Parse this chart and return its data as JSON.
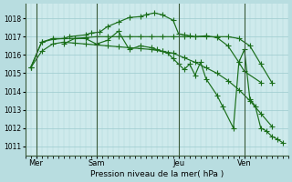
{
  "background_color": "#b8dde0",
  "plot_bg_color": "#ceeaec",
  "grid_color": "#9dcbce",
  "line_color": "#1a6e1a",
  "xlabel": "Pression niveau de la mer( hPa )",
  "ylim": [
    1010.5,
    1018.8
  ],
  "yticks": [
    1011,
    1012,
    1013,
    1014,
    1015,
    1016,
    1017,
    1018
  ],
  "xlim": [
    0,
    24
  ],
  "day_labels": [
    "Mer",
    "Sam",
    "Jeu",
    "Ven"
  ],
  "day_positions": [
    1.0,
    6.5,
    14.0,
    20.0
  ],
  "vline_positions": [
    1.0,
    6.5,
    14.0,
    20.0
  ],
  "series1": {
    "x": [
      0.5,
      1.5,
      2.5,
      3.5,
      4.5,
      5.5,
      6.5,
      7.5,
      8.5,
      9.5,
      10.5,
      11.5,
      12.5,
      13.5,
      14.5,
      15.5,
      16.5,
      17.5,
      18.5,
      19.5,
      20.5,
      21.5,
      22.5
    ],
    "y": [
      1015.3,
      1016.2,
      1016.6,
      1016.7,
      1016.65,
      1016.6,
      1016.55,
      1016.5,
      1016.45,
      1016.4,
      1016.35,
      1016.3,
      1016.2,
      1016.1,
      1015.85,
      1015.6,
      1015.3,
      1015.0,
      1014.6,
      1014.1,
      1013.5,
      1012.8,
      1012.1
    ]
  },
  "series2": {
    "x": [
      0.5,
      1.5,
      2.5,
      3.5,
      4.5,
      5.5,
      6.5,
      7.5,
      8.5,
      9.5,
      10.5,
      11.5,
      12.5,
      13.5,
      14.5,
      15.5,
      16.5,
      17.5,
      18.5,
      19.5,
      20.5,
      21.5,
      22.5
    ],
    "y": [
      1015.3,
      1016.7,
      1016.85,
      1016.9,
      1016.9,
      1016.95,
      1017.0,
      1017.0,
      1017.0,
      1017.0,
      1017.0,
      1017.0,
      1017.0,
      1017.0,
      1017.0,
      1017.0,
      1017.0,
      1017.0,
      1017.0,
      1016.9,
      1016.5,
      1015.5,
      1014.5
    ]
  },
  "series3": {
    "x": [
      0.5,
      1.5,
      2.5,
      3.5,
      4.0,
      5.5,
      6.0,
      6.8,
      7.5,
      8.5,
      9.5,
      10.5,
      11.0,
      11.8,
      12.5,
      13.5,
      14.0,
      14.5,
      15.0,
      15.5,
      16.5,
      17.5,
      18.5,
      19.5,
      20.0,
      21.5
    ],
    "y": [
      1015.3,
      1016.7,
      1016.9,
      1016.9,
      1017.0,
      1017.1,
      1017.2,
      1017.25,
      1017.55,
      1017.8,
      1018.05,
      1018.1,
      1018.2,
      1018.3,
      1018.2,
      1017.9,
      1017.15,
      1017.1,
      1017.05,
      1017.0,
      1017.05,
      1016.95,
      1016.5,
      1015.6,
      1015.1,
      1014.5
    ]
  },
  "series4": {
    "x": [
      3.5,
      4.5,
      5.5,
      6.5,
      7.5,
      8.5,
      9.5,
      10.5,
      11.5,
      12.0,
      12.5,
      13.0,
      13.5,
      14.0,
      14.5,
      15.0,
      15.5,
      16.0,
      16.5,
      17.5,
      18.0,
      19.0,
      19.5,
      20.0,
      20.5,
      21.0,
      21.5,
      22.0,
      22.5,
      23.0,
      23.5
    ],
    "y": [
      1016.6,
      1016.9,
      1016.9,
      1016.6,
      1016.8,
      1017.3,
      1016.3,
      1016.5,
      1016.4,
      1016.3,
      1016.2,
      1016.1,
      1015.8,
      1015.5,
      1015.2,
      1015.5,
      1014.9,
      1015.6,
      1014.7,
      1013.8,
      1013.2,
      1012.0,
      1015.6,
      1016.3,
      1013.6,
      1013.2,
      1012.0,
      1011.85,
      1011.55,
      1011.4,
      1011.2
    ]
  }
}
